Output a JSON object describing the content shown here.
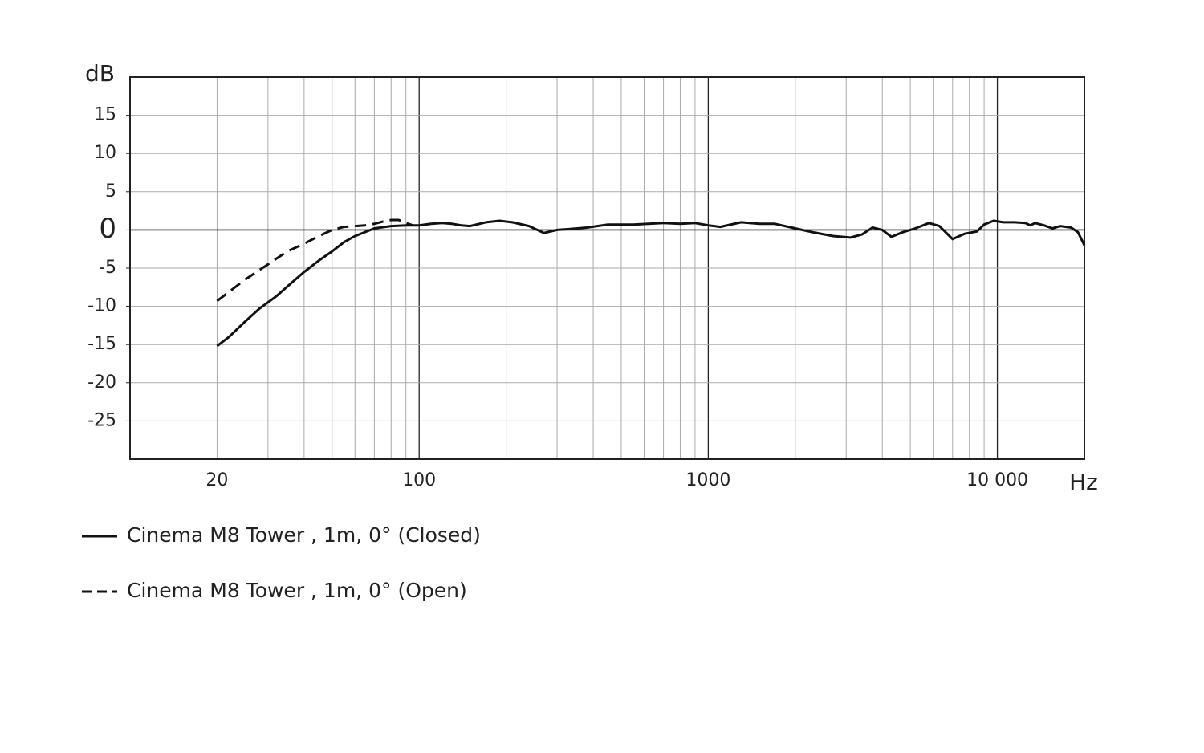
{
  "chart_data": {
    "type": "line",
    "xlabel": "Hz",
    "ylabel": "dB",
    "xscale": "log",
    "grid": true,
    "xlim": [
      10,
      20000
    ],
    "ylim": [
      -30,
      20
    ],
    "xticks": [
      20,
      100,
      1000,
      {
        "value": 10000,
        "label": "10 000"
      }
    ],
    "xminor": [
      30,
      40,
      50,
      60,
      70,
      80,
      90,
      200,
      300,
      400,
      500,
      600,
      700,
      800,
      900,
      2000,
      3000,
      4000,
      5000,
      6000,
      7000,
      8000,
      9000
    ],
    "yticks": [
      -25,
      -20,
      -15,
      -10,
      -5,
      0,
      5,
      10,
      15
    ],
    "legend": "bottom-left",
    "series": [
      {
        "name": "Cinema M8 Tower , 1m, 0° (Closed)",
        "color": "#111111",
        "line_style": "solid",
        "x": [
          20,
          22,
          25,
          28,
          32,
          36,
          40,
          45,
          50,
          55,
          60,
          70,
          80,
          90,
          100,
          110,
          120,
          130,
          140,
          150,
          170,
          190,
          210,
          240,
          270,
          300,
          330,
          380,
          450,
          550,
          700,
          800,
          900,
          1000,
          1100,
          1300,
          1500,
          1700,
          2000,
          2300,
          2700,
          3100,
          3400,
          3700,
          4000,
          4300,
          4700,
          5200,
          5800,
          6300,
          7000,
          7700,
          8500,
          9000,
          9700,
          10500,
          11500,
          12500,
          13000,
          13500,
          14500,
          15500,
          16500,
          18000,
          19000,
          20000
        ],
        "values": [
          -15.2,
          -14,
          -12,
          -10.3,
          -8.7,
          -7,
          -5.5,
          -4,
          -2.8,
          -1.6,
          -0.8,
          0.2,
          0.5,
          0.6,
          0.6,
          0.8,
          0.9,
          0.8,
          0.6,
          0.5,
          1.0,
          1.2,
          1.0,
          0.5,
          -0.4,
          0,
          0.1,
          0.3,
          0.7,
          0.7,
          0.9,
          0.8,
          0.9,
          0.6,
          0.4,
          1.0,
          0.8,
          0.8,
          0.2,
          -0.3,
          -0.8,
          -1.0,
          -0.6,
          0.3,
          0,
          -0.9,
          -0.3,
          0.2,
          0.9,
          0.5,
          -1.2,
          -0.5,
          -0.2,
          0.7,
          1.2,
          1.0,
          1.0,
          0.9,
          0.6,
          0.9,
          0.6,
          0.2,
          0.5,
          0.3,
          -0.3,
          -2.0
        ]
      },
      {
        "name": "Cinema M8 Tower , 1m, 0° (Open)",
        "color": "#111111",
        "line_style": "dashed",
        "x": [
          20,
          25,
          30,
          35,
          40,
          45,
          50,
          55,
          60,
          65,
          70,
          75,
          80,
          85,
          90,
          95
        ],
        "values": [
          -9.3,
          -6.5,
          -4.5,
          -2.8,
          -1.8,
          -0.8,
          0.0,
          0.4,
          0.5,
          0.6,
          0.8,
          1.1,
          1.3,
          1.3,
          0.9,
          0.6
        ]
      }
    ]
  }
}
